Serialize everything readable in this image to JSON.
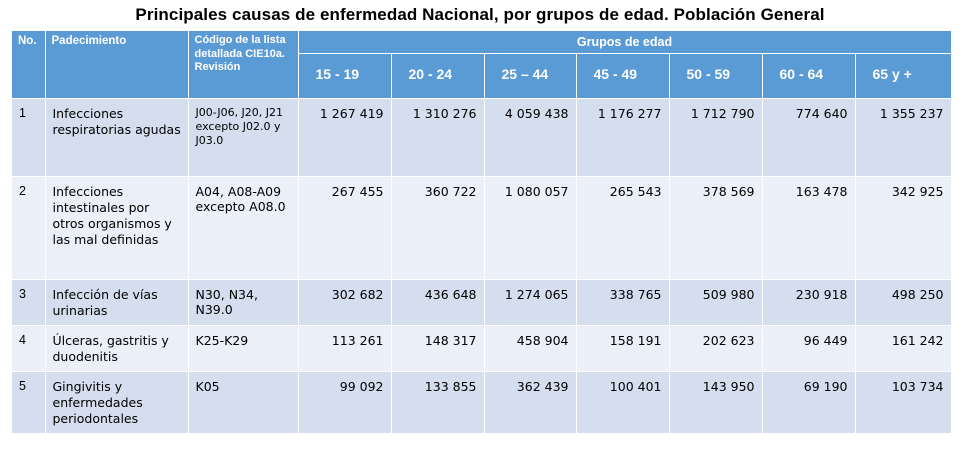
{
  "title": "Principales causas de enfermedad Nacional, por grupos de edad. Población General",
  "header": {
    "no": "No.",
    "padecimiento": "Padecimiento",
    "codigo": "Código de la lista detallada CIE10a. Revisión",
    "grupos": "Grupos de edad",
    "age_groups": [
      "15 - 19",
      "20 - 24",
      "25 – 44",
      "45 - 49",
      "50 - 59",
      "60 - 64",
      "65 y +"
    ]
  },
  "rows": [
    {
      "no": "1",
      "padecimiento": "Infecciones respiratorias agudas",
      "codigo": "J00-J06, J20, J21 excepto J02.0 y J03.0",
      "values": [
        "1 267 419",
        "1 310 276",
        "4 059 438",
        "1 176 277",
        "1 712 790",
        "774 640",
        "1 355 237"
      ]
    },
    {
      "no": "2",
      "padecimiento": "Infecciones intestinales por otros organismos y las mal definidas",
      "codigo": "A04, A08-A09 excepto A08.0",
      "values": [
        "267 455",
        "360 722",
        "1 080 057",
        "265 543",
        "378 569",
        "163 478",
        "342 925"
      ]
    },
    {
      "no": "3",
      "padecimiento": "Infección de vías urinarias",
      "codigo": "N30, N34, N39.0",
      "values": [
        "302 682",
        "436 648",
        "1 274 065",
        "338 765",
        "509 980",
        "230 918",
        "498 250"
      ]
    },
    {
      "no": "4",
      "padecimiento": "Úlceras, gastritis y duodenitis",
      "codigo": "K25-K29",
      "values": [
        "113 261",
        "148 317",
        "458 904",
        "158 191",
        "202 623",
        "96 449",
        "161 242"
      ]
    },
    {
      "no": "5",
      "padecimiento": "Gingivitis y enfermedades periodontales",
      "codigo": "K05",
      "values": [
        "99 092",
        "133 855",
        "362 439",
        "100 401",
        "143 950",
        "69 190",
        "103 734"
      ]
    }
  ]
}
